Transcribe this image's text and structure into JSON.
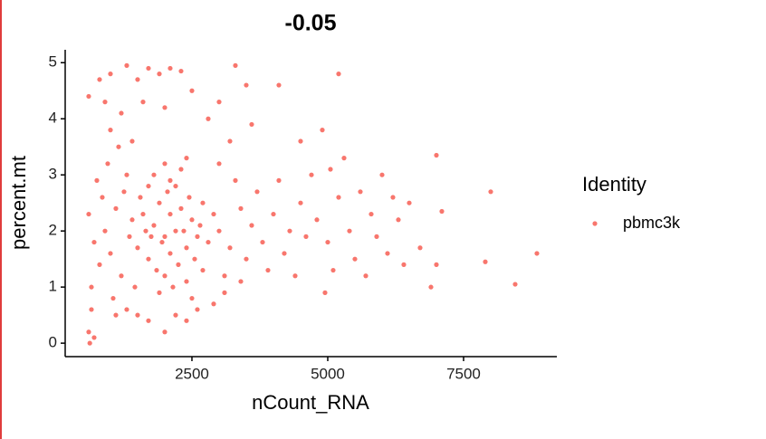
{
  "chart_data": {
    "type": "scatter",
    "title": "-0.05",
    "x_label": "nCount_RNA",
    "y_label": "percent.mt",
    "legend_title": "Identity",
    "xlim": [
      167,
      9217
    ],
    "ylim": [
      -0.24,
      5.23
    ],
    "xticks": [
      2500,
      5000,
      7500
    ],
    "yticks": [
      0,
      1,
      2,
      3,
      4,
      5
    ],
    "grid": false,
    "series": [
      {
        "name": "pbmc3k",
        "color": "#F8766D",
        "x": [
          1800,
          2000,
          2200,
          2100,
          1900,
          2300,
          2400,
          1700,
          2500,
          2600,
          2000,
          2200,
          1600,
          1800,
          2400,
          2700,
          2100,
          1950,
          2350,
          2050,
          1750,
          2250,
          2450,
          1850,
          2150,
          2550,
          2650,
          1650,
          2800,
          2000,
          1500,
          2300,
          1900,
          2700,
          2100,
          1550,
          2500,
          2900,
          1700,
          2400,
          900,
          1000,
          1100,
          1200,
          1300,
          1400,
          800,
          950,
          1050,
          1250,
          1350,
          1150,
          850,
          1450,
          700,
          750,
          650,
          600,
          1000,
          1200,
          1400,
          900,
          1100,
          1300,
          600,
          620,
          700,
          650,
          800,
          1000,
          1300,
          1500,
          1700,
          1900,
          2100,
          2300,
          1600,
          2000,
          2500,
          600,
          3000,
          3200,
          3400,
          3100,
          3300,
          3500,
          3600,
          3800,
          3000,
          3200,
          2900,
          3100,
          3400,
          3700,
          3900,
          4000,
          4200,
          4100,
          4300,
          4500,
          4400,
          4600,
          3300,
          3500,
          3000,
          4100,
          3600,
          2800,
          4800,
          4700,
          5000,
          5200,
          5200,
          4900,
          5300,
          5100,
          5400,
          5600,
          5500,
          5800,
          6000,
          5900,
          6200,
          6100,
          6300,
          6500,
          6400,
          6700,
          6900,
          7000,
          7100,
          7000,
          7900,
          8000,
          8450,
          8850,
          5700,
          4950,
          4500,
          5050,
          1500,
          1700,
          2000,
          2200,
          2600,
          2400
        ],
        "values": [
          2.1,
          1.9,
          2.0,
          1.6,
          2.5,
          2.4,
          1.7,
          1.5,
          2.2,
          1.9,
          1.2,
          2.8,
          2.3,
          3.0,
          1.1,
          2.5,
          2.3,
          1.8,
          2.0,
          2.7,
          1.9,
          1.4,
          2.6,
          1.3,
          1.0,
          1.5,
          2.1,
          2.0,
          1.8,
          3.2,
          1.7,
          3.1,
          0.9,
          1.3,
          2.9,
          2.6,
          0.8,
          2.3,
          2.8,
          3.3,
          2.0,
          1.6,
          2.4,
          1.2,
          3.0,
          2.2,
          1.4,
          3.2,
          0.8,
          2.7,
          1.9,
          3.5,
          2.6,
          1.0,
          1.8,
          2.9,
          1.0,
          2.3,
          3.8,
          4.1,
          3.6,
          4.3,
          0.5,
          0.6,
          0.2,
          0,
          0.1,
          0.6,
          4.7,
          4.8,
          4.95,
          4.7,
          4.9,
          4.8,
          4.9,
          4.85,
          4.3,
          4.2,
          4.5,
          4.4,
          2.0,
          1.7,
          2.4,
          1.2,
          2.9,
          1.5,
          2.1,
          1.8,
          3.2,
          3.6,
          0.7,
          0.9,
          1.1,
          2.7,
          1.3,
          2.3,
          1.6,
          2.9,
          2.0,
          2.5,
          1.2,
          1.9,
          4.95,
          4.6,
          4.3,
          4.6,
          3.9,
          4.0,
          2.2,
          3.0,
          1.8,
          2.6,
          4.8,
          3.8,
          3.3,
          1.3,
          2.0,
          2.7,
          1.5,
          2.3,
          3.0,
          1.9,
          2.6,
          1.6,
          2.2,
          2.5,
          1.4,
          1.7,
          1.0,
          3.35,
          2.35,
          1.4,
          1.45,
          2.7,
          1.05,
          1.6,
          1.2,
          0.9,
          3.6,
          3.1,
          0.5,
          0.4,
          0.2,
          0.5,
          0.6,
          0.4
        ]
      }
    ]
  }
}
